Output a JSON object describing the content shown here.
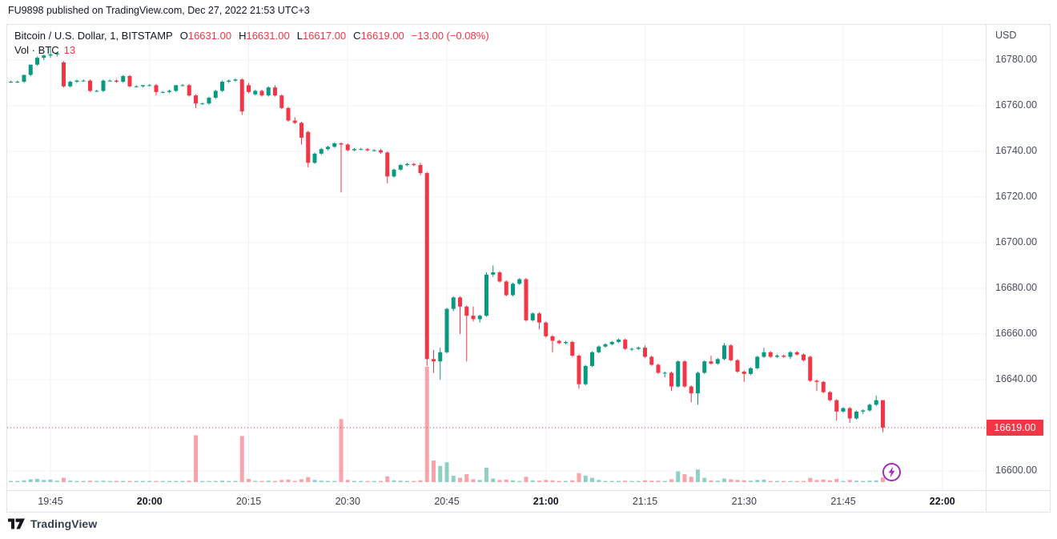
{
  "header": {
    "attribution": "FU9898 published on TradingView.com, Dec 27, 2022 21:53 UTC+3"
  },
  "legend": {
    "symbol_text": "Bitcoin / U.S. Dollar, 1, BITSTAMP",
    "ohlc": [
      {
        "label": "O",
        "value": "16631.00"
      },
      {
        "label": "H",
        "value": "16631.00"
      },
      {
        "label": "L",
        "value": "16617.00"
      },
      {
        "label": "C",
        "value": "16619.00"
      }
    ],
    "change_text": "−13.00 (−0.08%)",
    "vol_label": "Vol · BTC",
    "vol_value": "13"
  },
  "price_axis": {
    "currency": "USD",
    "ticks": [
      "16780.00",
      "16760.00",
      "16740.00",
      "16720.00",
      "16700.00",
      "16680.00",
      "16660.00",
      "16640.00",
      "16600.00"
    ],
    "last_label": "16619.00"
  },
  "time_axis": {
    "ticks": [
      {
        "label": "19:45",
        "bold": false
      },
      {
        "label": "20:00",
        "bold": true
      },
      {
        "label": "20:15",
        "bold": false
      },
      {
        "label": "20:30",
        "bold": false
      },
      {
        "label": "20:45",
        "bold": false
      },
      {
        "label": "21:00",
        "bold": true
      },
      {
        "label": "21:15",
        "bold": false
      },
      {
        "label": "21:30",
        "bold": false
      },
      {
        "label": "21:45",
        "bold": false
      },
      {
        "label": "22:00",
        "bold": true
      }
    ]
  },
  "footer": {
    "logo_text": "TradingView"
  },
  "colors": {
    "up": "#089981",
    "down": "#f23645",
    "vol_up": "rgba(8,153,129,0.45)",
    "vol_down": "rgba(242,54,69,0.45)",
    "grid": "#f0f3fa",
    "border": "#e0e3eb",
    "axis_text": "#4a4e59",
    "dark_text": "#131722",
    "badge_bg": "#f23645",
    "boost_purple": "#a22dbb"
  },
  "chart_data": {
    "type": "candlestick_with_volume",
    "title": "Bitcoin / U.S. Dollar",
    "exchange": "BITSTAMP",
    "interval": "1 minute",
    "currency": "USD",
    "ylabel": "Price (USD)",
    "ylim": [
      16592,
      16795
    ],
    "grid": true,
    "price_line": 16619,
    "last_candle": {
      "open": 16631,
      "high": 16631,
      "low": 16617,
      "close": 16619,
      "volume_btc": 13
    },
    "change": "-13.00",
    "change_pct": "-0.08%",
    "columns": [
      "time",
      "open",
      "high",
      "low",
      "close",
      "volume_btc"
    ],
    "candles": [
      [
        "19:39",
        16770.5,
        16771,
        16770,
        16770.5,
        2
      ],
      [
        "19:40",
        16770.5,
        16771,
        16770,
        16770.5,
        1
      ],
      [
        "19:41",
        16770.5,
        16773.5,
        16770,
        16773.5,
        5
      ],
      [
        "19:42",
        16773.5,
        16778,
        16773,
        16778,
        8
      ],
      [
        "19:43",
        16778,
        16781.5,
        16777.5,
        16781,
        9
      ],
      [
        "19:44",
        16781,
        16782.5,
        16780,
        16782,
        6
      ],
      [
        "19:45",
        16782,
        16786,
        16781,
        16782.5,
        7
      ],
      [
        "19:46",
        16782.5,
        16783.5,
        16781.5,
        16783,
        4
      ],
      [
        "19:47",
        16779,
        16779.5,
        16768,
        16768.5,
        12
      ],
      [
        "19:48",
        16768.5,
        16771,
        16768,
        16770.5,
        4
      ],
      [
        "19:49",
        16770.5,
        16771.5,
        16770,
        16771,
        2
      ],
      [
        "19:50",
        16771,
        16771.5,
        16770.5,
        16771,
        1
      ],
      [
        "19:51",
        16771,
        16771.5,
        16766,
        16766.5,
        4
      ],
      [
        "19:52",
        16766.5,
        16767,
        16766,
        16766.5,
        1
      ],
      [
        "19:53",
        16766.5,
        16771.5,
        16766,
        16771,
        4
      ],
      [
        "19:54",
        16771,
        16771.5,
        16770.5,
        16771,
        1
      ],
      [
        "19:55",
        16771,
        16771.5,
        16770,
        16770.5,
        1
      ],
      [
        "19:56",
        16770.5,
        16773.5,
        16770,
        16773,
        3
      ],
      [
        "19:57",
        16773,
        16773.5,
        16768,
        16768.5,
        3
      ],
      [
        "19:58",
        16768.5,
        16769,
        16768,
        16768.5,
        1
      ],
      [
        "19:59",
        16768.5,
        16769,
        16768,
        16769,
        1
      ],
      [
        "20:00",
        16769,
        16769.5,
        16768.5,
        16769,
        2
      ],
      [
        "20:01",
        16769,
        16769.5,
        16764.5,
        16766,
        3
      ],
      [
        "20:02",
        16766,
        16766.5,
        16765.5,
        16766,
        1
      ],
      [
        "20:03",
        16766,
        16767,
        16765.5,
        16766.5,
        1
      ],
      [
        "20:04",
        16766.5,
        16769,
        16766,
        16769,
        3
      ],
      [
        "20:05",
        16769,
        16769.5,
        16768.5,
        16769,
        1
      ],
      [
        "20:06",
        16769,
        16769.5,
        16764,
        16764.5,
        4
      ],
      [
        "20:07",
        16764.5,
        16765,
        16759,
        16761,
        130
      ],
      [
        "20:08",
        16761,
        16761.5,
        16760.5,
        16761,
        2
      ],
      [
        "20:09",
        16761,
        16764,
        16760.5,
        16763.5,
        3
      ],
      [
        "20:10",
        16763.5,
        16767,
        16763,
        16766.5,
        3
      ],
      [
        "20:11",
        16766.5,
        16771,
        16766,
        16770.5,
        4
      ],
      [
        "20:12",
        16770.5,
        16771.5,
        16770,
        16771,
        2
      ],
      [
        "20:13",
        16771,
        16772,
        16770.5,
        16771.5,
        1
      ],
      [
        "20:14",
        16771.5,
        16772,
        16756,
        16757.5,
        128
      ],
      [
        "20:15",
        16769,
        16770,
        16765.5,
        16766,
        9
      ],
      [
        "20:16",
        16765,
        16767,
        16764.5,
        16766.5,
        3
      ],
      [
        "20:17",
        16766.5,
        16767,
        16764,
        16764.5,
        2
      ],
      [
        "20:18",
        16764.5,
        16768.5,
        16764,
        16768,
        4
      ],
      [
        "20:19",
        16768,
        16769,
        16764,
        16764.5,
        3
      ],
      [
        "20:20",
        16764.5,
        16765,
        16758.5,
        16759,
        6
      ],
      [
        "20:21",
        16759,
        16759.5,
        16753,
        16753.5,
        7
      ],
      [
        "20:22",
        16753.5,
        16755,
        16752,
        16752.5,
        3
      ],
      [
        "20:23",
        16752.5,
        16753,
        16743,
        16746,
        8
      ],
      [
        "20:24",
        16748.5,
        16749,
        16733,
        16735,
        14
      ],
      [
        "20:25",
        16735,
        16739.5,
        16734.5,
        16739,
        6
      ],
      [
        "20:26",
        16739,
        16741.5,
        16738.5,
        16741,
        4
      ],
      [
        "20:27",
        16741,
        16742.5,
        16740.5,
        16742,
        2
      ],
      [
        "20:28",
        16742,
        16744,
        16741.5,
        16743.5,
        3
      ],
      [
        "20:29",
        16743.5,
        16744,
        16722,
        16743,
        175
      ],
      [
        "20:30",
        16743,
        16743.5,
        16740,
        16740.5,
        6
      ],
      [
        "20:31",
        16740.5,
        16741.5,
        16740,
        16741,
        2
      ],
      [
        "20:32",
        16741,
        16741.5,
        16740.5,
        16741,
        1
      ],
      [
        "20:33",
        16741,
        16741.5,
        16740,
        16740.5,
        1
      ],
      [
        "20:34",
        16740.5,
        16741,
        16740,
        16740.5,
        1
      ],
      [
        "20:35",
        16740.5,
        16741,
        16739,
        16739.5,
        3
      ],
      [
        "20:36",
        16739.5,
        16740,
        16726,
        16729,
        16
      ],
      [
        "20:37",
        16729,
        16732.5,
        16728.5,
        16732,
        5
      ],
      [
        "20:38",
        16732,
        16734.5,
        16731.5,
        16734,
        4
      ],
      [
        "20:39",
        16734,
        16735,
        16733.5,
        16734.5,
        2
      ],
      [
        "20:40",
        16734.5,
        16735,
        16733.5,
        16734,
        1
      ],
      [
        "20:41",
        16734,
        16735,
        16729.5,
        16730.5,
        5
      ],
      [
        "20:42",
        16730.5,
        16731,
        16646,
        16649,
        320
      ],
      [
        "20:43",
        16649,
        16653,
        16643,
        16648,
        60
      ],
      [
        "20:44",
        16648,
        16654,
        16640,
        16652,
        45
      ],
      [
        "20:45",
        16652,
        16671.5,
        16651.5,
        16671,
        55
      ],
      [
        "20:46",
        16671,
        16676.5,
        16670,
        16676,
        18
      ],
      [
        "20:47",
        16676,
        16676.5,
        16660,
        16672,
        12
      ],
      [
        "20:48",
        16672,
        16672.5,
        16648,
        16668,
        22
      ],
      [
        "20:49",
        16668,
        16672,
        16665.5,
        16666.5,
        8
      ],
      [
        "20:50",
        16666.5,
        16668.5,
        16665,
        16668,
        6
      ],
      [
        "20:51",
        16668,
        16687,
        16667.5,
        16686,
        40
      ],
      [
        "20:52",
        16686,
        16690,
        16685,
        16687,
        10
      ],
      [
        "20:53",
        16687,
        16687.5,
        16682.5,
        16683,
        6
      ],
      [
        "20:54",
        16683,
        16683.5,
        16676.5,
        16677,
        7
      ],
      [
        "20:55",
        16677,
        16682.5,
        16676.5,
        16682,
        5
      ],
      [
        "20:56",
        16682,
        16684.5,
        16681.5,
        16684,
        3
      ],
      [
        "20:57",
        16684,
        16684.5,
        16665.5,
        16666,
        15
      ],
      [
        "20:58",
        16666,
        16669.5,
        16665.5,
        16669,
        5
      ],
      [
        "20:59",
        16669,
        16669.5,
        16662,
        16665,
        4
      ],
      [
        "21:00",
        16665,
        16665.5,
        16658.5,
        16659,
        6
      ],
      [
        "21:01",
        16659,
        16659.5,
        16652,
        16657,
        5
      ],
      [
        "21:02",
        16657,
        16657.5,
        16655.5,
        16656,
        2
      ],
      [
        "21:03",
        16656,
        16657,
        16655.5,
        16656.5,
        2
      ],
      [
        "21:04",
        16656.5,
        16657,
        16650,
        16650.5,
        5
      ],
      [
        "21:05",
        16650.5,
        16651,
        16636,
        16638,
        25
      ],
      [
        "21:06",
        16638,
        16646.5,
        16637.5,
        16646,
        18
      ],
      [
        "21:07",
        16646,
        16652.5,
        16645.5,
        16652,
        12
      ],
      [
        "21:08",
        16652,
        16655,
        16651.5,
        16654.5,
        6
      ],
      [
        "21:09",
        16654.5,
        16656,
        16654,
        16655.5,
        3
      ],
      [
        "21:10",
        16655.5,
        16657,
        16655,
        16656.5,
        2
      ],
      [
        "21:11",
        16656.5,
        16658,
        16656,
        16657.5,
        3
      ],
      [
        "21:12",
        16657.5,
        16658,
        16653,
        16653.5,
        4
      ],
      [
        "21:13",
        16653.5,
        16654,
        16652.5,
        16653.5,
        1
      ],
      [
        "21:14",
        16653.5,
        16654.5,
        16653,
        16654,
        1
      ],
      [
        "21:15",
        16654,
        16655,
        16649.5,
        16650,
        5
      ],
      [
        "21:16",
        16650,
        16650.5,
        16646,
        16646.5,
        4
      ],
      [
        "21:17",
        16646.5,
        16647,
        16642.5,
        16643,
        4
      ],
      [
        "21:18",
        16643,
        16643.5,
        16641,
        16643,
        3
      ],
      [
        "21:19",
        16643,
        16643.5,
        16635,
        16637,
        8
      ],
      [
        "21:20",
        16637,
        16648.5,
        16636.5,
        16648,
        30
      ],
      [
        "21:21",
        16648,
        16648.5,
        16636.5,
        16637,
        22
      ],
      [
        "21:22",
        16637,
        16637.5,
        16630,
        16634,
        15
      ],
      [
        "21:23",
        16634,
        16643.5,
        16629,
        16643,
        35
      ],
      [
        "21:24",
        16643,
        16648.5,
        16642.5,
        16648,
        12
      ],
      [
        "21:25",
        16648,
        16650.5,
        16646.5,
        16647,
        5
      ],
      [
        "21:26",
        16647,
        16649.5,
        16646.5,
        16649,
        4
      ],
      [
        "21:27",
        16649,
        16656,
        16648.5,
        16655,
        10
      ],
      [
        "21:28",
        16655,
        16655.5,
        16648,
        16648.5,
        8
      ],
      [
        "21:29",
        16648.5,
        16649,
        16643,
        16643.5,
        6
      ],
      [
        "21:30",
        16643.5,
        16644,
        16639,
        16642.5,
        5
      ],
      [
        "21:31",
        16642.5,
        16645.5,
        16642,
        16645,
        4
      ],
      [
        "21:32",
        16645,
        16650.5,
        16644.5,
        16650,
        6
      ],
      [
        "21:33",
        16650,
        16654,
        16649.5,
        16652,
        7
      ],
      [
        "21:34",
        16652,
        16652.5,
        16649.5,
        16650,
        2
      ],
      [
        "21:35",
        16650,
        16651,
        16649.5,
        16650.5,
        1
      ],
      [
        "21:36",
        16650.5,
        16651,
        16649.5,
        16650,
        2
      ],
      [
        "21:37",
        16650,
        16652.5,
        16649,
        16652,
        3
      ],
      [
        "21:38",
        16652,
        16652.5,
        16650.5,
        16651,
        2
      ],
      [
        "21:39",
        16651,
        16651.5,
        16648,
        16648.5,
        3
      ],
      [
        "21:40",
        16650,
        16650.5,
        16639,
        16639.5,
        12
      ],
      [
        "21:41",
        16639.5,
        16640,
        16635,
        16639,
        6
      ],
      [
        "21:42",
        16639,
        16639.5,
        16634,
        16634.5,
        7
      ],
      [
        "21:43",
        16634.5,
        16635,
        16630.5,
        16631,
        5
      ],
      [
        "21:44",
        16631,
        16631.5,
        16622,
        16626,
        9
      ],
      [
        "21:45",
        16626,
        16628,
        16625.5,
        16627.5,
        3
      ],
      [
        "21:46",
        16627.5,
        16628,
        16621,
        16623,
        6
      ],
      [
        "21:47",
        16623,
        16626.5,
        16622.5,
        16626,
        4
      ],
      [
        "21:48",
        16626,
        16627,
        16625,
        16626.5,
        2
      ],
      [
        "21:49",
        16626.5,
        16629.5,
        16626,
        16629,
        4
      ],
      [
        "21:50",
        16629,
        16633,
        16628.5,
        16631,
        5
      ],
      [
        "21:51",
        16631,
        16631,
        16617,
        16619,
        13
      ]
    ]
  }
}
